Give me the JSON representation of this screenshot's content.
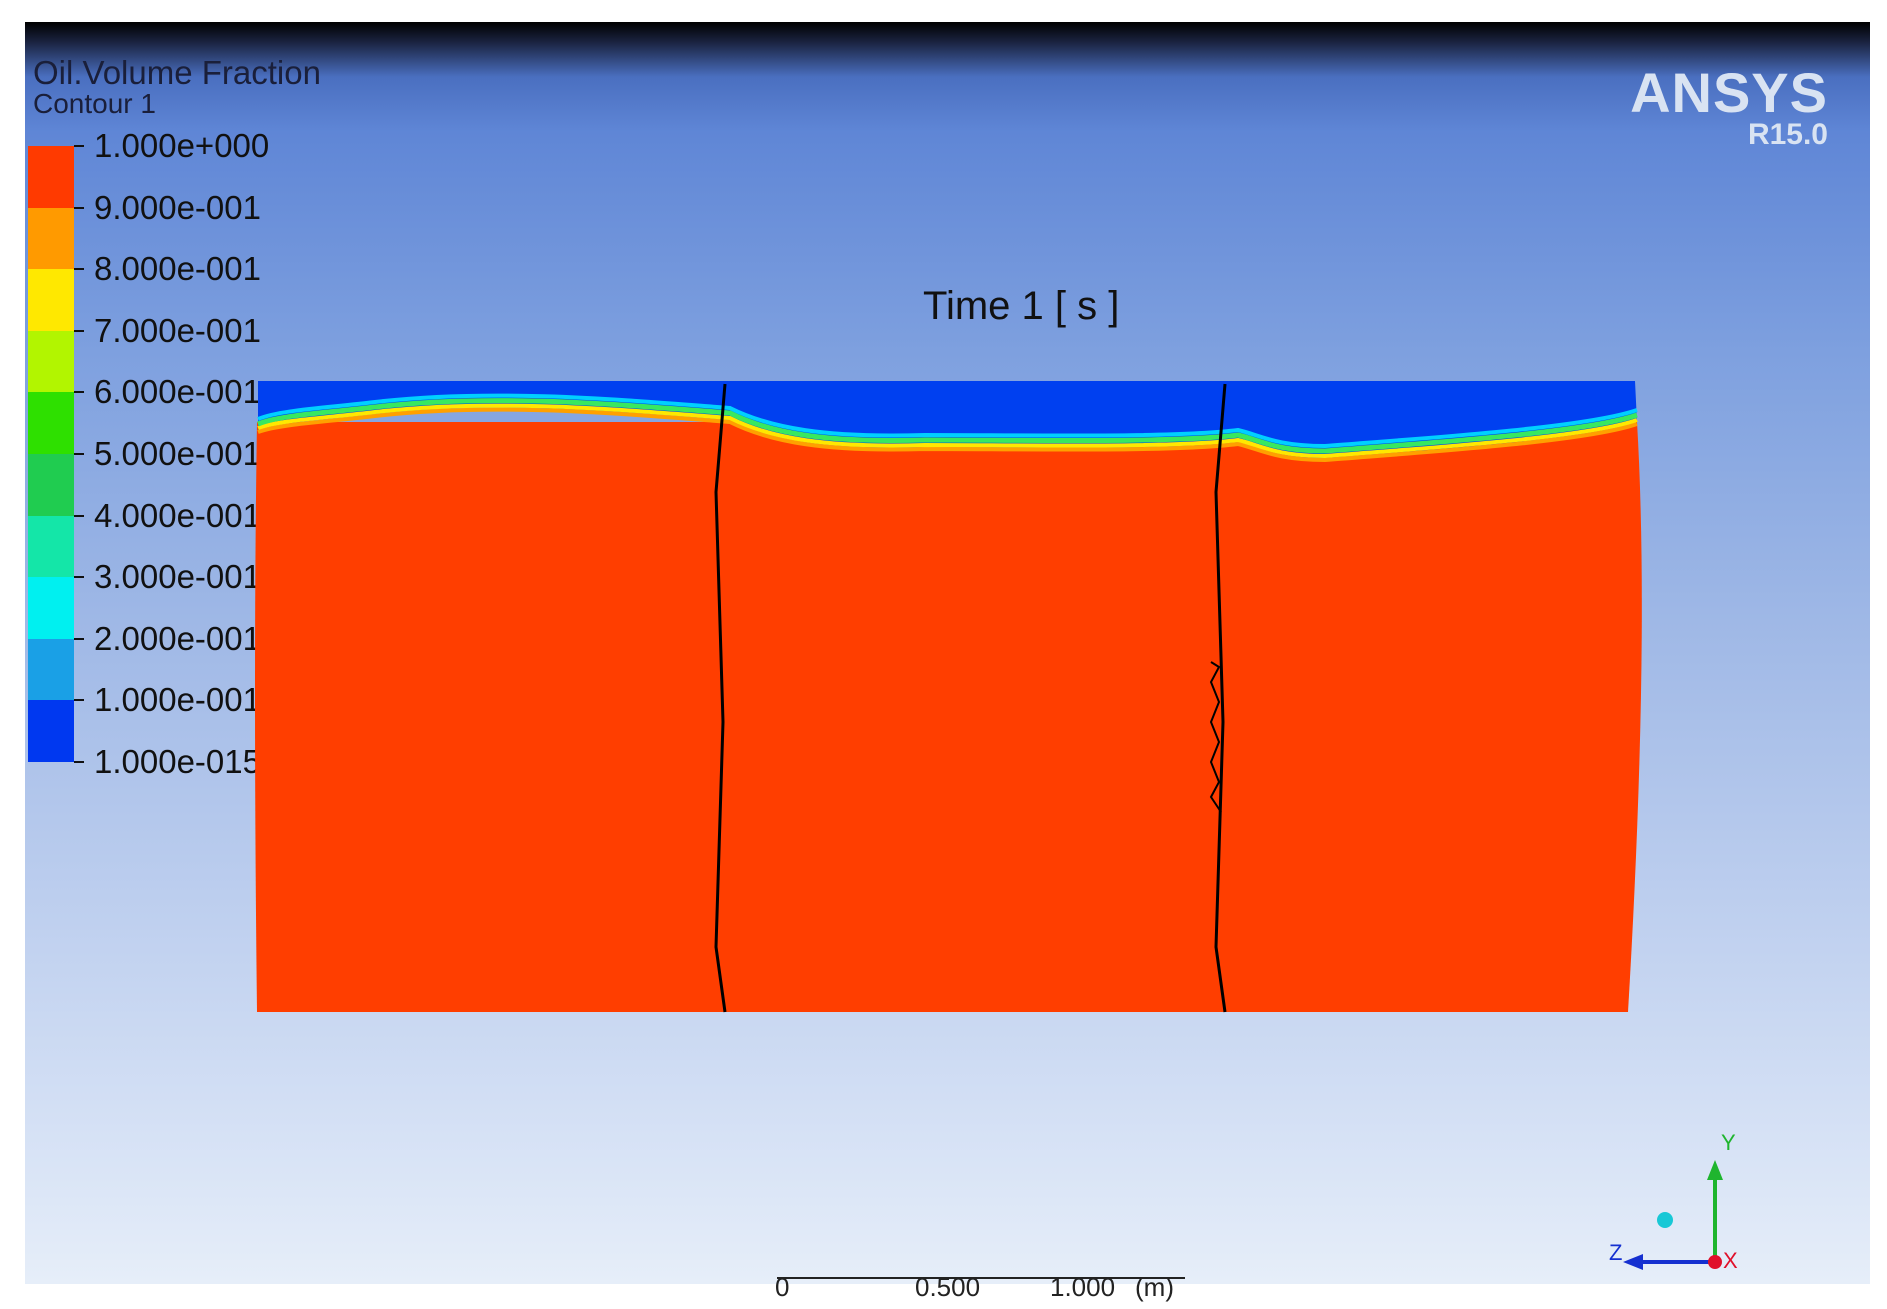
{
  "legend": {
    "title": "Oil.Volume Fraction",
    "subtitle": "Contour 1",
    "ticks": [
      "1.000e+000",
      "9.000e-001",
      "8.000e-001",
      "7.000e-001",
      "6.000e-001",
      "5.000e-001",
      "4.000e-001",
      "3.000e-001",
      "2.000e-001",
      "1.000e-001",
      "1.000e-015"
    ],
    "band_colors_top_to_bottom": [
      "#ff3a00",
      "#ff9a00",
      "#ffe800",
      "#b2f500",
      "#2ee000",
      "#20cc50",
      "#14e6a8",
      "#00f0f0",
      "#1aa0e6",
      "#0038f0"
    ]
  },
  "plot": {
    "time_label": "Time 1 [ s ]",
    "colors": {
      "oil": "#ff3e00",
      "water": "#0040f0",
      "interface_band": [
        "#00d0ff",
        "#38e860",
        "#ffe800",
        "#ffa000"
      ],
      "baffle": "#000000"
    }
  },
  "brand": {
    "name": "ANSYS",
    "version": "R15.0"
  },
  "scale": {
    "labels": [
      "0",
      "0.500",
      "1.000",
      "(m)"
    ]
  },
  "axes": {
    "y": "Y",
    "z": "Z",
    "x": "X"
  }
}
